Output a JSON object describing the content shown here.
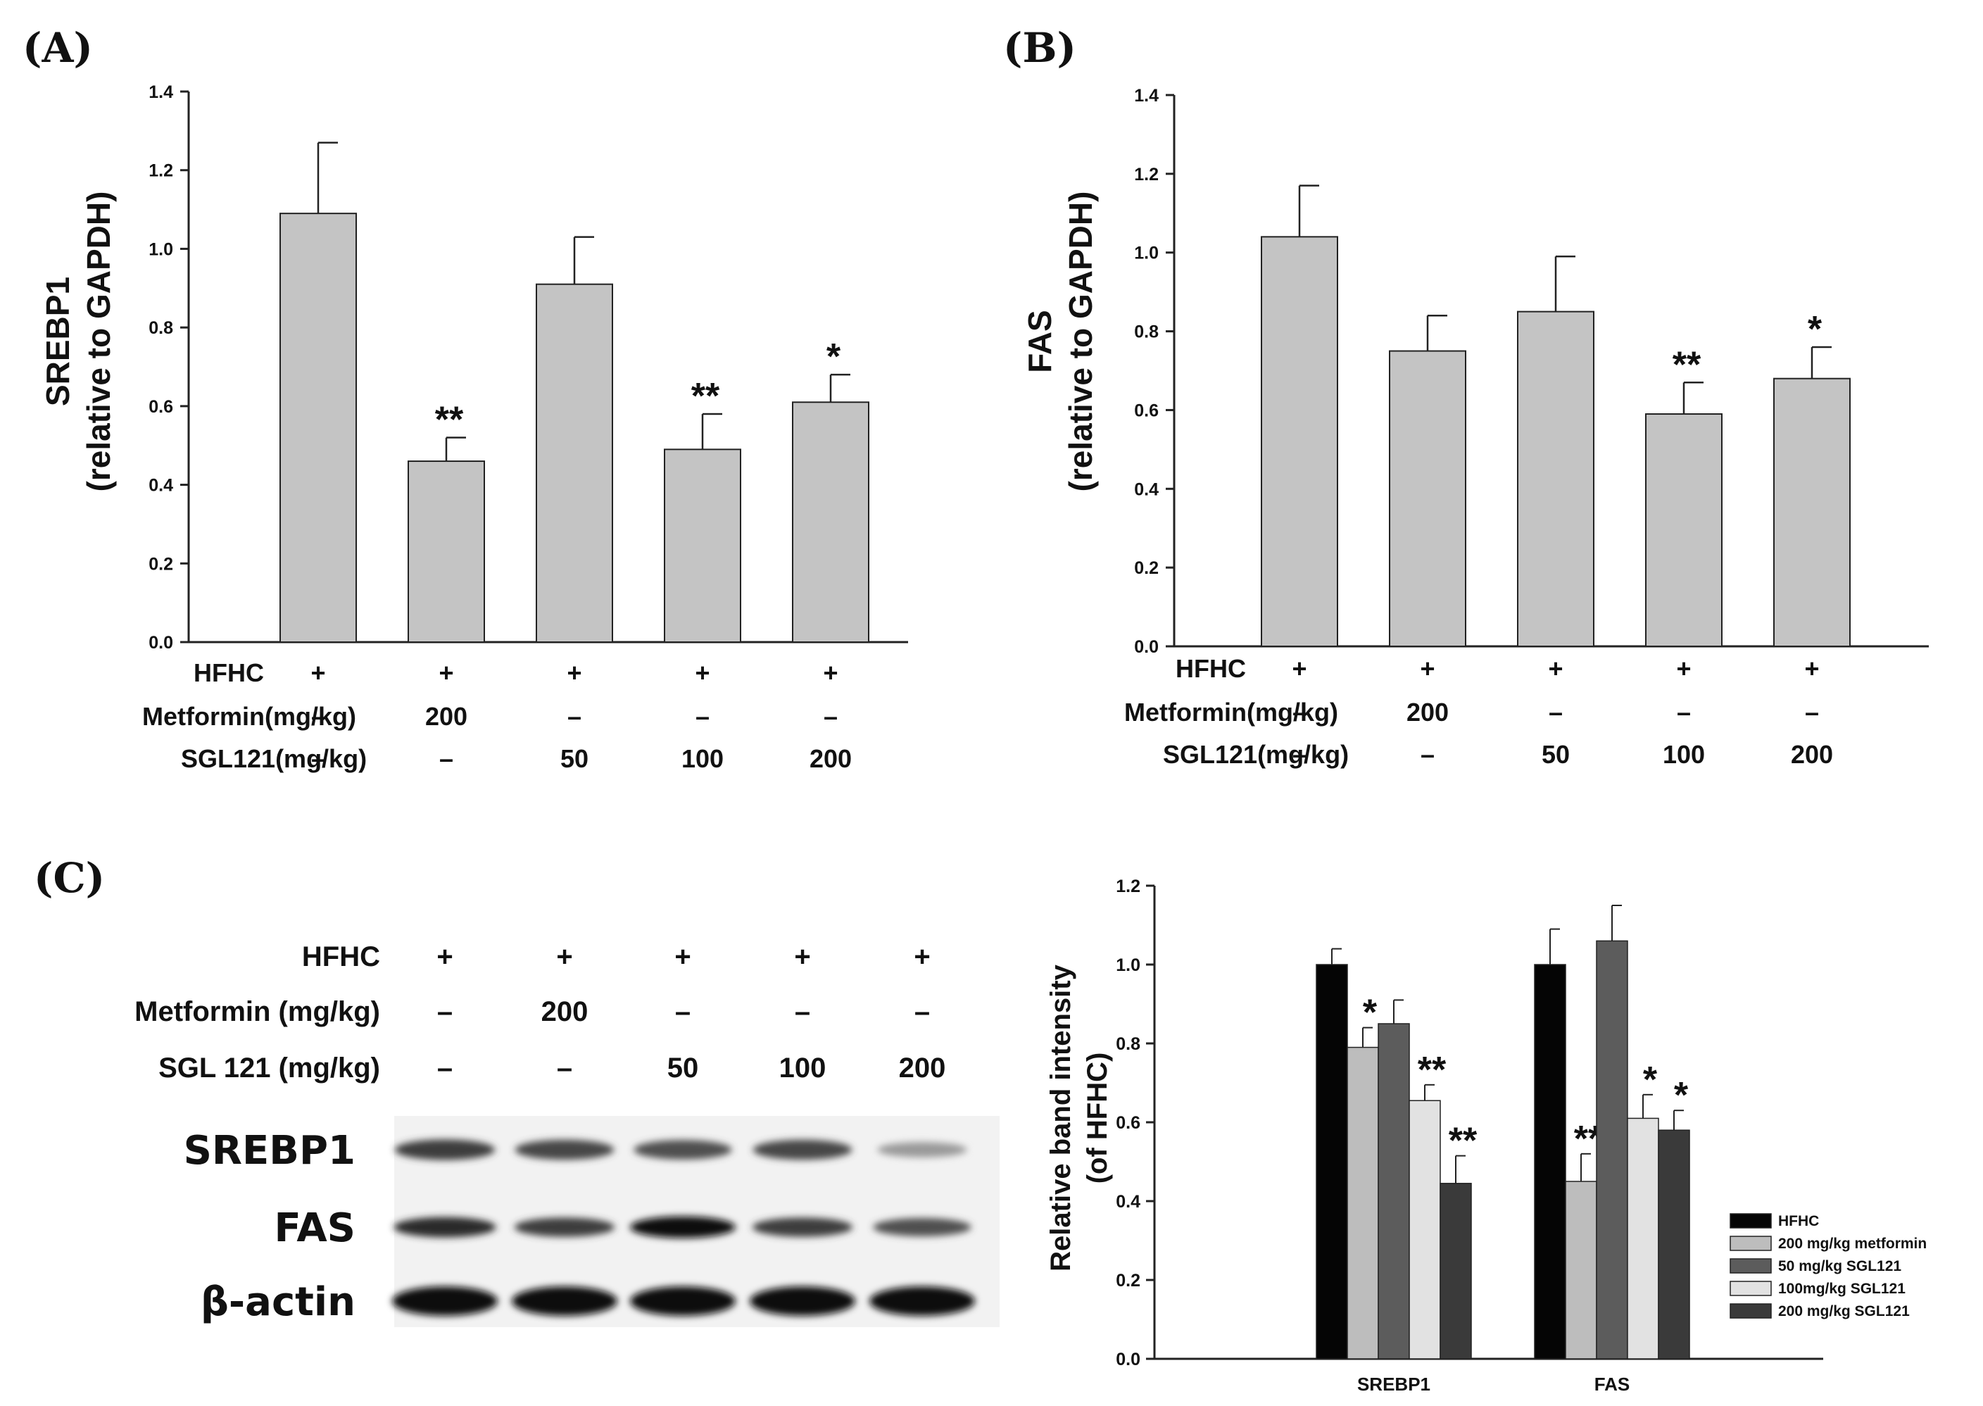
{
  "panels": {
    "a": "(A)",
    "b": "(B)",
    "c": "(C)"
  },
  "colors": {
    "bar_gray": "#c4c4c4",
    "axis": "#222222"
  },
  "chart_data": [
    {
      "type": "bar",
      "id": "A",
      "ylabel_line1": "SREBP1",
      "ylabel_line2": "(relative to GAPDH)",
      "ylim": [
        0,
        1.4
      ],
      "yticks": [
        "0.0",
        "0.2",
        "0.4",
        "0.6",
        "0.8",
        "1.0",
        "1.2",
        "1.4"
      ],
      "values": [
        1.09,
        0.46,
        0.91,
        0.49,
        0.61
      ],
      "errors": [
        0.18,
        0.06,
        0.12,
        0.09,
        0.07
      ],
      "significance": [
        "",
        "**",
        "",
        "**",
        "*"
      ],
      "conditions": [
        {
          "label": "HFHC",
          "values": [
            "+",
            "+",
            "+",
            "+",
            "+"
          ]
        },
        {
          "label": "Metformin(mg/kg)",
          "values": [
            "–",
            "200",
            "–",
            "–",
            "–"
          ]
        },
        {
          "label": "SGL121(mg/kg)",
          "values": [
            "–",
            "–",
            "50",
            "100",
            "200"
          ]
        }
      ]
    },
    {
      "type": "bar",
      "id": "B",
      "ylabel_line1": "FAS",
      "ylabel_line2": "(relative to GAPDH)",
      "ylim": [
        0,
        1.4
      ],
      "yticks": [
        "0.0",
        "0.2",
        "0.4",
        "0.6",
        "0.8",
        "1.0",
        "1.2",
        "1.4"
      ],
      "values": [
        1.04,
        0.75,
        0.85,
        0.59,
        0.68
      ],
      "errors": [
        0.13,
        0.09,
        0.14,
        0.08,
        0.08
      ],
      "significance": [
        "",
        "",
        "",
        "**",
        "*"
      ],
      "conditions": [
        {
          "label": "HFHC",
          "values": [
            "+",
            "+",
            "+",
            "+",
            "+"
          ]
        },
        {
          "label": "Metformin(mg/kg)",
          "values": [
            "–",
            "200",
            "–",
            "–",
            "–"
          ]
        },
        {
          "label": "SGL121(mg/kg)",
          "values": [
            "–",
            "–",
            "50",
            "100",
            "200"
          ]
        }
      ]
    },
    {
      "type": "bar",
      "id": "C",
      "ylabel_line1": "Relative band intensity",
      "ylabel_line2": "(of HFHC)",
      "ylim": [
        0,
        1.2
      ],
      "yticks": [
        "0.0",
        "0.2",
        "0.4",
        "0.6",
        "0.8",
        "1.0",
        "1.2"
      ],
      "categories": [
        "SREBP1",
        "FAS"
      ],
      "series": [
        {
          "name": "HFHC",
          "color": "#050505",
          "values": [
            1.0,
            1.0
          ],
          "errors": [
            0.04,
            0.09
          ],
          "significance": [
            "",
            ""
          ]
        },
        {
          "name": "200 mg/kg metformin",
          "color": "#bdbdbd",
          "values": [
            0.79,
            0.45
          ],
          "errors": [
            0.05,
            0.07
          ],
          "significance": [
            "*",
            "**"
          ]
        },
        {
          "name": "50 mg/kg SGL121",
          "color": "#5c5c5c",
          "values": [
            0.85,
            1.06
          ],
          "errors": [
            0.06,
            0.09
          ],
          "significance": [
            "",
            ""
          ]
        },
        {
          "name": "100mg/kg SGL121",
          "color": "#e2e2e2",
          "values": [
            0.655,
            0.61
          ],
          "errors": [
            0.04,
            0.06
          ],
          "significance": [
            "**",
            "*"
          ]
        },
        {
          "name": "200 mg/kg SGL121",
          "color": "#3a3a3a",
          "values": [
            0.445,
            0.58
          ],
          "errors": [
            0.07,
            0.05
          ],
          "significance": [
            "**",
            "*"
          ]
        }
      ]
    }
  ],
  "blot": {
    "conditions": [
      {
        "label": "HFHC",
        "values": [
          "+",
          "+",
          "+",
          "+",
          "+"
        ]
      },
      {
        "label": "Metformin (mg/kg)",
        "values": [
          "–",
          "200",
          "–",
          "–",
          "–"
        ]
      },
      {
        "label": "SGL 121 (mg/kg)",
        "values": [
          "–",
          "–",
          "50",
          "100",
          "200"
        ]
      }
    ],
    "rows": [
      {
        "label": "SREBP1",
        "intensity": [
          0.75,
          0.7,
          0.65,
          0.7,
          0.25
        ]
      },
      {
        "label": "FAS",
        "intensity": [
          0.85,
          0.75,
          1.0,
          0.75,
          0.65
        ]
      },
      {
        "label": "β-actin",
        "intensity": [
          1.0,
          1.0,
          1.0,
          1.0,
          1.0
        ]
      }
    ]
  }
}
